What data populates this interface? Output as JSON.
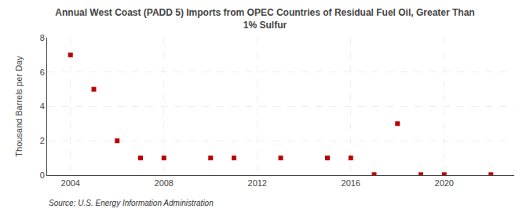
{
  "chart_data": {
    "type": "scatter",
    "title": "Annual West Coast (PADD 5) Imports from OPEC Countries of Residual Fuel Oil, Greater Than\n1% Sulfur",
    "y_label": "Thousand Barrels per Day",
    "annotations": [
      "Source: U.S. Energy Information Administration"
    ],
    "x": [
      2004,
      2005,
      2006,
      2007,
      2008,
      2010,
      2011,
      2013,
      2015,
      2016,
      2017,
      2018,
      2019,
      2020,
      2022
    ],
    "values": [
      7,
      5,
      2,
      1,
      1,
      1,
      1,
      1,
      1,
      1,
      0.03,
      3,
      0.03,
      0.03,
      0.03
    ],
    "color": "#bb0000",
    "marker": "square",
    "xlim": [
      2003,
      2023
    ],
    "xticks": [
      2004,
      2008,
      2012,
      2016,
      2020
    ],
    "ylim": [
      0,
      8
    ],
    "yticks": [
      0,
      2,
      4,
      6,
      8
    ],
    "grid": true
  }
}
